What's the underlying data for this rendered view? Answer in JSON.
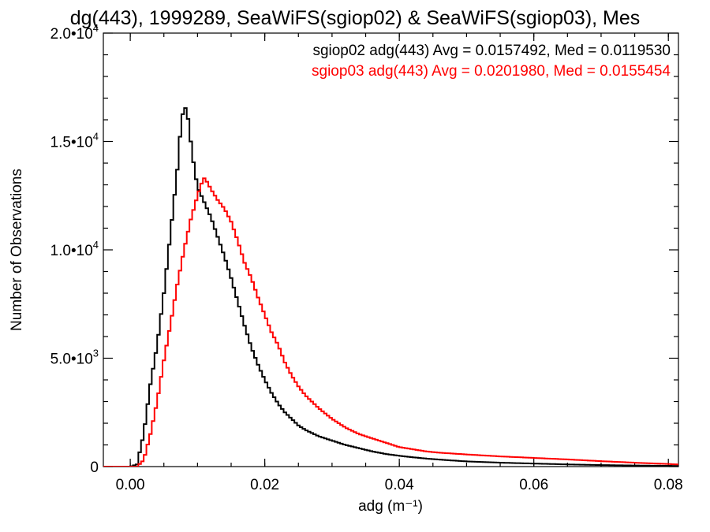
{
  "chart_data": {
    "type": "line",
    "title": "dg(443), 1999289, SeaWiFS(sgiop02) & SeaWiFS(sgiop03), Mes",
    "xlabel": "adg (m⁻¹)",
    "ylabel": "Number of Observations",
    "xlim": [
      -0.004,
      0.0815
    ],
    "ylim": [
      0,
      20000
    ],
    "x_ticks": [
      {
        "value": 0.0,
        "label": "0.00"
      },
      {
        "value": 0.02,
        "label": "0.02"
      },
      {
        "value": 0.04,
        "label": "0.04"
      },
      {
        "value": 0.06,
        "label": "0.06"
      },
      {
        "value": 0.08,
        "label": "0.08"
      }
    ],
    "y_ticks": [
      {
        "value": 0,
        "mantissa": "0",
        "exponent": ""
      },
      {
        "value": 5000,
        "mantissa": "5.0•10",
        "exponent": "3"
      },
      {
        "value": 10000,
        "mantissa": "1.0•10",
        "exponent": "4"
      },
      {
        "value": 15000,
        "mantissa": "1.5•10",
        "exponent": "4"
      },
      {
        "value": 20000,
        "mantissa": "2.0•10",
        "exponent": "4"
      }
    ],
    "grid": false,
    "legend_position": "top-right",
    "series": [
      {
        "name": "sgiop02 adg(443) Avg = 0.0157492, Med = 0.0119530",
        "color": "#000000",
        "x": [
          -0.004,
          0.0,
          0.001,
          0.002,
          0.003,
          0.004,
          0.005,
          0.006,
          0.007,
          0.0075,
          0.008,
          0.0085,
          0.009,
          0.0095,
          0.01,
          0.011,
          0.012,
          0.013,
          0.014,
          0.015,
          0.016,
          0.017,
          0.018,
          0.019,
          0.02,
          0.021,
          0.022,
          0.023,
          0.024,
          0.025,
          0.026,
          0.028,
          0.03,
          0.032,
          0.034,
          0.036,
          0.038,
          0.04,
          0.042,
          0.044,
          0.046,
          0.048,
          0.05,
          0.055,
          0.06,
          0.065,
          0.07,
          0.075,
          0.0815
        ],
        "values": [
          0,
          0,
          100,
          1500,
          3800,
          5600,
          8000,
          10800,
          13700,
          15600,
          16700,
          16300,
          15000,
          13800,
          12900,
          12200,
          11500,
          10600,
          9700,
          8700,
          7600,
          6500,
          5500,
          4700,
          4000,
          3400,
          2900,
          2500,
          2200,
          1900,
          1700,
          1400,
          1200,
          1000,
          850,
          700,
          580,
          500,
          430,
          370,
          320,
          280,
          240,
          180,
          140,
          100,
          70,
          50,
          30
        ]
      },
      {
        "name": "sgiop03 adg(443) Avg = 0.0201980, Med = 0.0155454",
        "color": "#ff0000",
        "x": [
          -0.004,
          0.0,
          0.001,
          0.002,
          0.003,
          0.004,
          0.005,
          0.006,
          0.007,
          0.008,
          0.009,
          0.01,
          0.0105,
          0.011,
          0.0115,
          0.012,
          0.013,
          0.014,
          0.015,
          0.016,
          0.017,
          0.018,
          0.019,
          0.02,
          0.021,
          0.022,
          0.023,
          0.024,
          0.025,
          0.026,
          0.028,
          0.03,
          0.032,
          0.034,
          0.036,
          0.038,
          0.04,
          0.042,
          0.044,
          0.046,
          0.048,
          0.05,
          0.055,
          0.06,
          0.065,
          0.07,
          0.075,
          0.0815
        ],
        "values": [
          0,
          0,
          0,
          300,
          1500,
          3000,
          4900,
          6600,
          8400,
          10000,
          11400,
          12500,
          13000,
          13300,
          13100,
          12800,
          12300,
          11900,
          11300,
          10400,
          9400,
          8700,
          7800,
          7000,
          6200,
          5600,
          4800,
          4200,
          3700,
          3300,
          2700,
          2200,
          1800,
          1500,
          1300,
          1100,
          900,
          800,
          700,
          640,
          600,
          560,
          470,
          400,
          330,
          250,
          180,
          100
        ]
      }
    ]
  }
}
